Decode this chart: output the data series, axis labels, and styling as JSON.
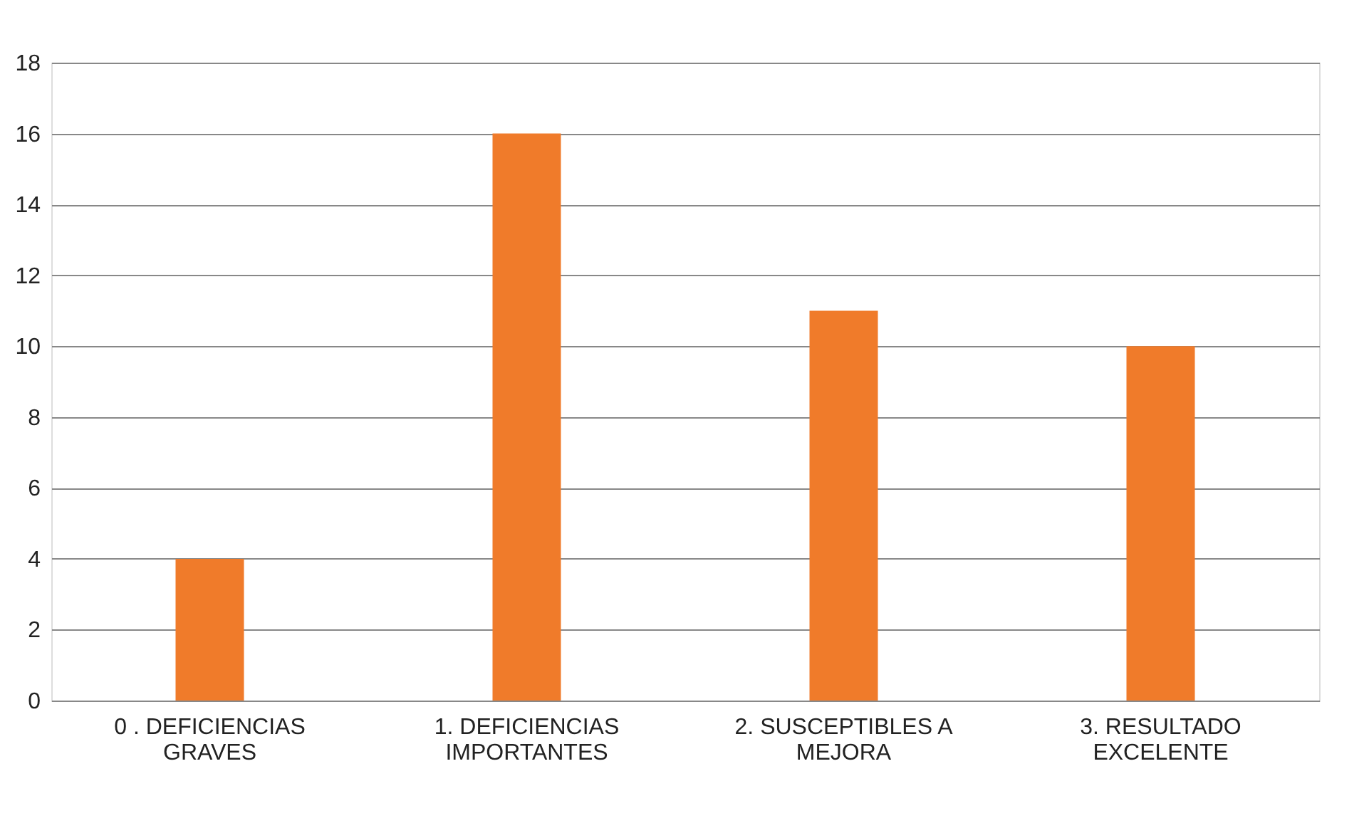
{
  "chart_data": {
    "type": "bar",
    "categories": [
      "0 . DEFICIENCIAS GRAVES",
      "1. DEFICIENCIAS IMPORTANTES",
      "2. SUSCEPTIBLES A MEJORA",
      "3. RESULTADO EXCELENTE"
    ],
    "values": [
      4,
      16,
      11,
      10
    ],
    "color": "#f07b2a",
    "ylim": [
      0,
      18
    ],
    "yticks": [
      0,
      2,
      4,
      6,
      8,
      10,
      12,
      14,
      16,
      18
    ],
    "grid": "y"
  }
}
